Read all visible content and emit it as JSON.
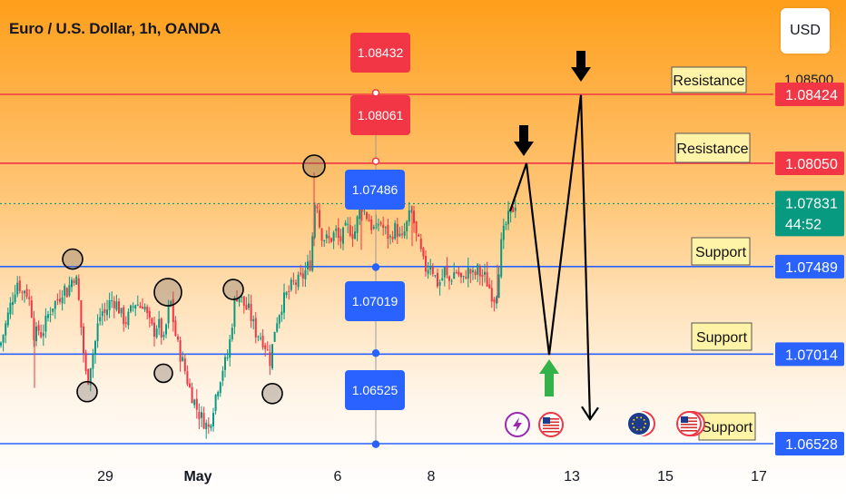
{
  "header": {
    "title": "Euro / U.S. Dollar, 1h, OANDA",
    "currency_button": "USD"
  },
  "price_axis": {
    "labels": [
      {
        "text": "1.08500",
        "value": 1.085,
        "partial": true
      },
      {
        "text": "1.08424",
        "value": 1.08424,
        "color": "#f23645"
      },
      {
        "text": "1.08050",
        "value": 1.0805,
        "color": "#f23645"
      },
      {
        "text": "1.07831",
        "value": 1.07831,
        "color": "#089981",
        "countdown": "44:52"
      },
      {
        "text": "1.07489",
        "value": 1.07489,
        "color": "#2962ff"
      },
      {
        "text": "1.07014",
        "value": 1.07014,
        "color": "#2962ff"
      },
      {
        "text": "1.06528",
        "value": 1.06528,
        "color": "#2962ff"
      }
    ]
  },
  "time_axis": {
    "labels": [
      "29",
      "May",
      "6",
      "8",
      "13",
      "15",
      "17"
    ]
  },
  "horizontal_lines": [
    {
      "label": "Resistance",
      "value": 1.08424,
      "color": "#f23645"
    },
    {
      "label": "Resistance",
      "value": 1.0805,
      "color": "#f23645"
    },
    {
      "label": "Support",
      "value": 1.07489,
      "color": "#2962ff"
    },
    {
      "label": "Support",
      "value": 1.07014,
      "color": "#2962ff"
    },
    {
      "label": "Support",
      "value": 1.06528,
      "color": "#2962ff"
    }
  ],
  "price_markers": [
    {
      "text": "1.08432",
      "value": 1.08432,
      "color": "#f23645"
    },
    {
      "text": "1.08061",
      "value": 1.08061,
      "color": "#f23645"
    },
    {
      "text": "1.07486",
      "value": 1.07486,
      "color": "#2962ff"
    },
    {
      "text": "1.07019",
      "value": 1.07019,
      "color": "#2962ff"
    },
    {
      "text": "1.06525",
      "value": 1.06525,
      "color": "#2962ff"
    }
  ],
  "event_icons": [
    "lightning-icon",
    "us-flag-icon",
    "eu-flag-icon",
    "us-flag-icon"
  ],
  "colors": {
    "up": "#089981",
    "down": "#f23645",
    "resistance": "#f23645",
    "support": "#2962ff",
    "last_price": "#089981"
  },
  "chart_data": {
    "type": "candlestick",
    "title": "Euro / U.S. Dollar, 1h, OANDA",
    "ylim": [
      1.0645,
      1.0865
    ],
    "last_price": 1.07831,
    "close_path": [
      [
        0,
        1.0706
      ],
      [
        4,
        1.0713
      ],
      [
        8,
        1.0721
      ],
      [
        12,
        1.0729
      ],
      [
        16,
        1.0736
      ],
      [
        20,
        1.0742
      ],
      [
        24,
        1.0734
      ],
      [
        28,
        1.0738
      ],
      [
        31,
        1.0732
      ],
      [
        34,
        1.0728
      ],
      [
        38,
        1.071
      ],
      [
        42,
        1.0715
      ],
      [
        46,
        1.0712
      ],
      [
        50,
        1.0718
      ],
      [
        54,
        1.0724
      ],
      [
        58,
        1.0728
      ],
      [
        62,
        1.073
      ],
      [
        66,
        1.0733
      ],
      [
        70,
        1.0738
      ],
      [
        74,
        1.0735
      ],
      [
        78,
        1.0741
      ],
      [
        82,
        1.0744
      ],
      [
        85,
        1.074
      ],
      [
        88,
        1.0723
      ],
      [
        91,
        1.0708
      ],
      [
        94,
        1.0691
      ],
      [
        97,
        1.0688
      ],
      [
        100,
        1.0697
      ],
      [
        104,
        1.0705
      ],
      [
        108,
        1.0718
      ],
      [
        112,
        1.0725
      ],
      [
        116,
        1.0723
      ],
      [
        120,
        1.0729
      ],
      [
        124,
        1.0731
      ],
      [
        128,
        1.0729
      ],
      [
        131,
        1.0726
      ],
      [
        134,
        1.0722
      ],
      [
        138,
        1.0719
      ],
      [
        142,
        1.0722
      ],
      [
        146,
        1.0727
      ],
      [
        150,
        1.073
      ],
      [
        154,
        1.0727
      ],
      [
        158,
        1.073
      ],
      [
        162,
        1.0722
      ],
      [
        166,
        1.0716
      ],
      [
        170,
        1.0714
      ],
      [
        174,
        1.0719
      ],
      [
        178,
        1.0712
      ],
      [
        181,
        1.0707
      ],
      [
        184,
        1.0722
      ],
      [
        188,
        1.073
      ],
      [
        191,
        1.0719
      ],
      [
        194,
        1.071
      ],
      [
        198,
        1.0702
      ],
      [
        202,
        1.0696
      ],
      [
        206,
        1.0688
      ],
      [
        210,
        1.0681
      ],
      [
        214,
        1.0676
      ],
      [
        218,
        1.067
      ],
      [
        222,
        1.0667
      ],
      [
        226,
        1.0664
      ],
      [
        230,
        1.0661
      ],
      [
        234,
        1.0671
      ],
      [
        238,
        1.068
      ],
      [
        242,
        1.0688
      ],
      [
        246,
        1.0695
      ],
      [
        250,
        1.0698
      ],
      [
        254,
        1.0711
      ],
      [
        258,
        1.0729
      ],
      [
        262,
        1.0735
      ],
      [
        266,
        1.0731
      ],
      [
        270,
        1.0727
      ],
      [
        274,
        1.0725
      ],
      [
        278,
        1.0719
      ],
      [
        282,
        1.0713
      ],
      [
        286,
        1.0712
      ],
      [
        290,
        1.0709
      ],
      [
        294,
        1.0704
      ],
      [
        298,
        1.0697
      ],
      [
        302,
        1.0714
      ],
      [
        306,
        1.0722
      ],
      [
        310,
        1.0728
      ],
      [
        314,
        1.0732
      ],
      [
        318,
        1.0735
      ],
      [
        322,
        1.0739
      ],
      [
        326,
        1.074
      ],
      [
        330,
        1.0741
      ],
      [
        334,
        1.0744
      ],
      [
        338,
        1.0748
      ],
      [
        342,
        1.0751
      ],
      [
        345,
        1.0771
      ],
      [
        348,
        1.0792
      ],
      [
        351,
        1.0774
      ],
      [
        354,
        1.0767
      ],
      [
        358,
        1.0764
      ],
      [
        362,
        1.0763
      ],
      [
        366,
        1.0765
      ],
      [
        370,
        1.0768
      ],
      [
        374,
        1.0762
      ],
      [
        378,
        1.0766
      ],
      [
        382,
        1.077
      ],
      [
        386,
        1.0769
      ],
      [
        390,
        1.0766
      ],
      [
        394,
        1.0775
      ],
      [
        398,
        1.0783
      ],
      [
        402,
        1.0778
      ],
      [
        406,
        1.0775
      ],
      [
        410,
        1.077
      ],
      [
        414,
        1.0768
      ],
      [
        418,
        1.0774
      ],
      [
        422,
        1.077
      ],
      [
        426,
        1.0767
      ],
      [
        430,
        1.0764
      ],
      [
        434,
        1.077
      ],
      [
        438,
        1.0768
      ],
      [
        442,
        1.0762
      ],
      [
        446,
        1.0768
      ],
      [
        450,
        1.0775
      ],
      [
        454,
        1.0779
      ],
      [
        458,
        1.0766
      ],
      [
        462,
        1.076
      ],
      [
        466,
        1.0751
      ],
      [
        470,
        1.0747
      ],
      [
        474,
        1.0752
      ],
      [
        478,
        1.0745
      ],
      [
        482,
        1.074
      ],
      [
        486,
        1.0741
      ],
      [
        490,
        1.0747
      ],
      [
        494,
        1.074
      ],
      [
        498,
        1.0744
      ],
      [
        502,
        1.0747
      ],
      [
        506,
        1.0744
      ],
      [
        510,
        1.074
      ],
      [
        514,
        1.0747
      ],
      [
        518,
        1.0746
      ],
      [
        522,
        1.0743
      ],
      [
        526,
        1.0747
      ],
      [
        530,
        1.0744
      ],
      [
        534,
        1.0743
      ],
      [
        538,
        1.0739
      ],
      [
        542,
        1.0734
      ],
      [
        546,
        1.0731
      ],
      [
        549,
        1.0746
      ],
      [
        552,
        1.076
      ],
      [
        556,
        1.077
      ],
      [
        560,
        1.0775
      ],
      [
        564,
        1.0779
      ],
      [
        567,
        1.0783
      ],
      [
        570,
        1.0786
      ]
    ],
    "projection_path": [
      [
        580,
        1.0805
      ],
      [
        605,
        1.0701
      ],
      [
        640,
        1.0842
      ],
      [
        650,
        1.0666
      ]
    ],
    "pivot_circles": [
      {
        "x": 80,
        "value": 1.0753,
        "r": 11
      },
      {
        "x": 96,
        "value": 1.0681,
        "r": 11
      },
      {
        "x": 185,
        "value": 1.0735,
        "r": 15
      },
      {
        "x": 180,
        "value": 1.0691,
        "r": 10
      },
      {
        "x": 257,
        "value": 1.07365,
        "r": 11
      },
      {
        "x": 300,
        "value": 1.068,
        "r": 11
      },
      {
        "x": 346,
        "value": 1.08035,
        "r": 12
      }
    ]
  }
}
